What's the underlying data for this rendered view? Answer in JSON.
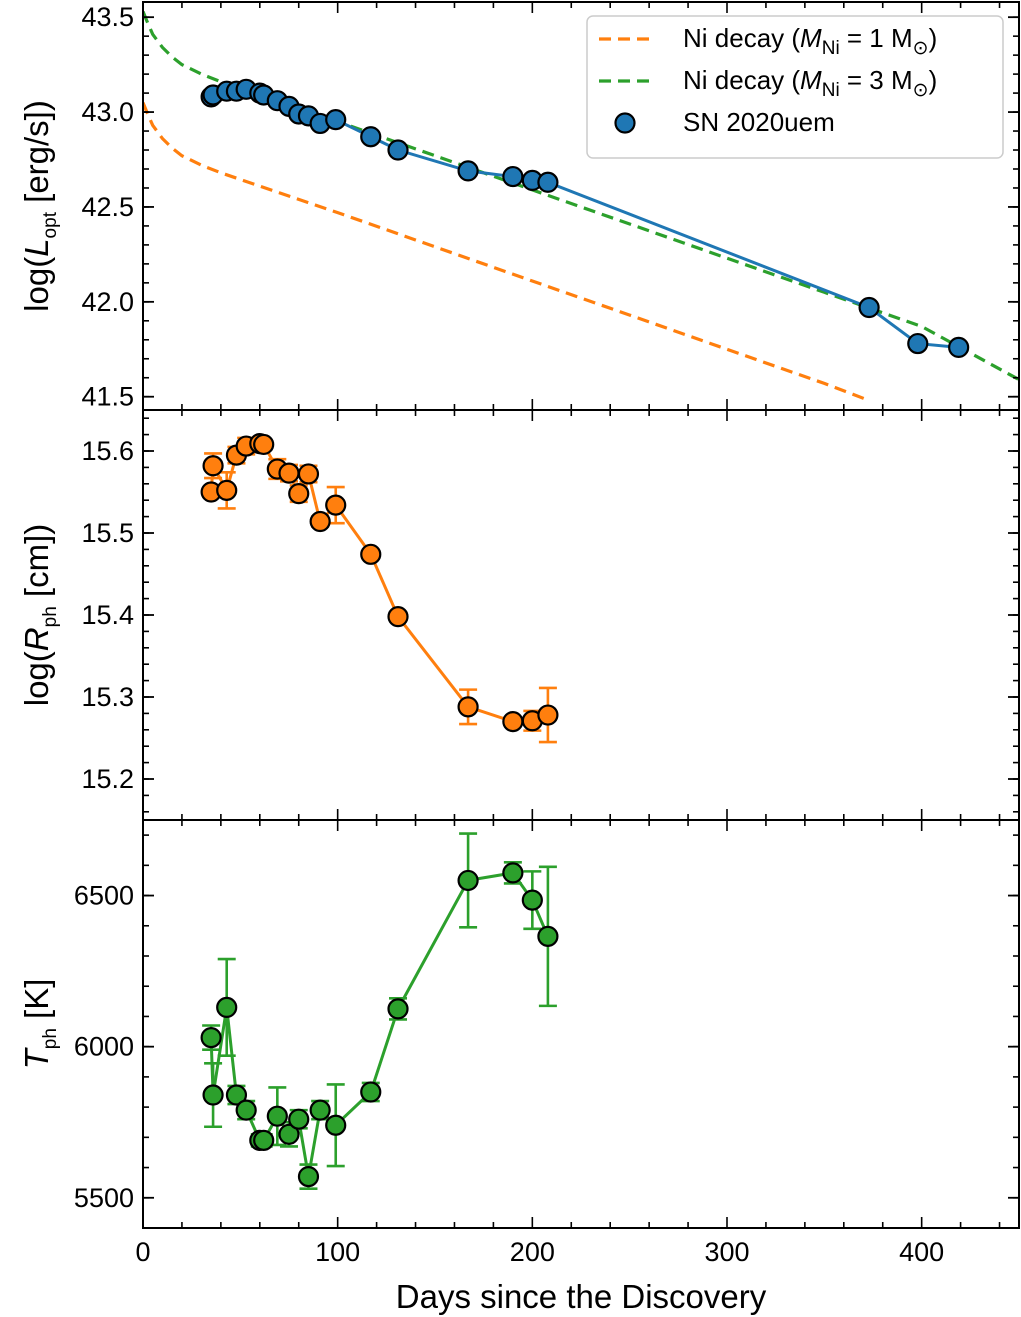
{
  "chart_data": [
    {
      "type": "line",
      "panel": "top",
      "xlabel": "Days since the Discovery",
      "ylabel": {
        "prefix": "log(",
        "var": "L",
        "sub": "opt",
        "suffix": " [erg/s])"
      },
      "xlim": [
        0,
        450
      ],
      "ylim": [
        41.43,
        43.58
      ],
      "yticks": [
        41.5,
        42.0,
        42.5,
        43.0,
        43.5
      ],
      "ytick_labels": [
        "41.5",
        "42.0",
        "42.5",
        "43.0",
        "43.5"
      ],
      "legend_position": "top-right",
      "series": [
        {
          "name": "Ni decay (M_Ni = 1 M_sun)",
          "legend_prefix": "Ni decay (",
          "legend_var": "M",
          "legend_sub": "Ni",
          "legend_mid": " = 1 M",
          "legend_suffix": ")",
          "style": "dashed",
          "color": "#ff7f0e",
          "x": [
            0,
            2,
            5,
            10,
            15,
            20,
            30,
            40,
            60,
            80,
            100,
            150,
            200,
            250,
            300,
            350,
            373
          ],
          "y": [
            43.05,
            43.0,
            42.93,
            42.86,
            42.81,
            42.77,
            42.72,
            42.68,
            42.61,
            42.54,
            42.47,
            42.29,
            42.11,
            41.93,
            41.75,
            41.57,
            41.48
          ]
        },
        {
          "name": "Ni decay (M_Ni = 3 M_sun)",
          "legend_prefix": "Ni decay (",
          "legend_var": "M",
          "legend_sub": "Ni",
          "legend_mid": " = 3 M",
          "legend_suffix": ")",
          "style": "dashed",
          "color": "#2ca02c",
          "x": [
            0,
            2,
            5,
            10,
            15,
            20,
            30,
            40,
            60,
            80,
            100,
            150,
            200,
            250,
            300,
            350,
            400,
            450
          ],
          "y": [
            43.53,
            43.48,
            43.41,
            43.34,
            43.29,
            43.25,
            43.2,
            43.16,
            43.09,
            43.02,
            42.95,
            42.77,
            42.59,
            42.41,
            42.23,
            42.05,
            41.87,
            41.59
          ]
        },
        {
          "name": "SN 2020uem",
          "style": "solid-markers",
          "color": "#1f77b4",
          "x": [
            35,
            36,
            43,
            48,
            53,
            60,
            62,
            69,
            75,
            80,
            85,
            91,
            99,
            117,
            131,
            167,
            190,
            200,
            208,
            373,
            398,
            419
          ],
          "y": [
            43.08,
            43.09,
            43.11,
            43.11,
            43.12,
            43.1,
            43.09,
            43.06,
            43.03,
            42.99,
            42.98,
            42.94,
            42.96,
            42.87,
            42.8,
            42.69,
            42.66,
            42.64,
            42.63,
            41.97,
            41.78,
            41.76
          ]
        }
      ]
    },
    {
      "type": "line",
      "panel": "middle",
      "xlim": [
        0,
        450
      ],
      "ylim": [
        15.15,
        15.65
      ],
      "ylabel": {
        "prefix": "log(",
        "var": "R",
        "sub": "ph",
        "suffix": " [cm])"
      },
      "yticks": [
        15.2,
        15.3,
        15.4,
        15.5,
        15.6
      ],
      "ytick_labels": [
        "15.2",
        "15.3",
        "15.4",
        "15.5",
        "15.6"
      ],
      "series": [
        {
          "name": "SN 2020uem",
          "color": "#ff7f0e",
          "x": [
            35,
            36,
            43,
            48,
            53,
            60,
            62,
            69,
            75,
            80,
            85,
            91,
            99,
            117,
            131,
            167,
            190,
            200,
            208
          ],
          "y": [
            15.55,
            15.582,
            15.552,
            15.595,
            15.606,
            15.609,
            15.608,
            15.578,
            15.573,
            15.548,
            15.572,
            15.514,
            15.534,
            15.474,
            15.398,
            15.288,
            15.27,
            15.271,
            15.278
          ],
          "yerr": [
            0.005,
            0.015,
            0.022,
            0.01,
            0.01,
            0.005,
            0.005,
            0.012,
            0.01,
            0.01,
            0.01,
            0.006,
            0.022,
            0.005,
            0.005,
            0.021,
            0.005,
            0.012,
            0.033
          ]
        }
      ]
    },
    {
      "type": "line",
      "panel": "bottom",
      "xlim": [
        0,
        450
      ],
      "ylim": [
        5400,
        6750
      ],
      "ylabel": {
        "prefix": "",
        "var": "T",
        "sub": "ph",
        "suffix": " [K]"
      },
      "yticks": [
        5500,
        6000,
        6500
      ],
      "ytick_labels": [
        "5500",
        "6000",
        "6500"
      ],
      "xticks": [
        0,
        100,
        200,
        300,
        400
      ],
      "xtick_labels": [
        "0",
        "100",
        "200",
        "300",
        "400"
      ],
      "series": [
        {
          "name": "SN 2020uem",
          "color": "#2ca02c",
          "x": [
            35,
            36,
            43,
            48,
            53,
            60,
            62,
            69,
            75,
            80,
            85,
            91,
            99,
            117,
            131,
            167,
            190,
            200,
            208
          ],
          "y": [
            6030,
            5840,
            6130,
            5840,
            5790,
            5690,
            5690,
            5770,
            5710,
            5760,
            5570,
            5790,
            5740,
            5850,
            6125,
            6550,
            6575,
            6485,
            6365
          ],
          "yerr": [
            40,
            105,
            160,
            30,
            30,
            20,
            20,
            95,
            40,
            30,
            40,
            30,
            135,
            30,
            35,
            155,
            35,
            95,
            230
          ]
        }
      ]
    }
  ]
}
